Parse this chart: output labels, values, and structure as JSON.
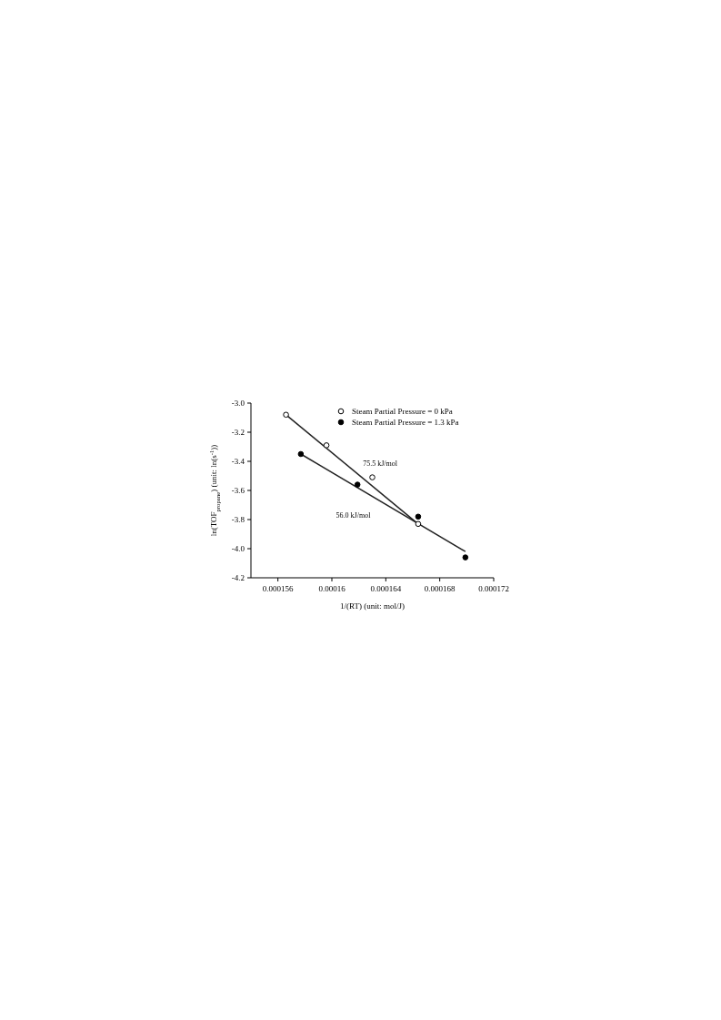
{
  "chart_data": {
    "type": "scatter",
    "xlabel": "1/(RT) (unit: mol/J)",
    "ylabel": "ln(TOF$_{propane}$) (unit: ln(s$^{-1}$))",
    "xlim": [
      0.000154,
      0.000172
    ],
    "xticks": [
      0.000156,
      0.00016,
      0.000164,
      0.000168,
      0.000172
    ],
    "ylim": [
      -4.2,
      -3.0
    ],
    "yticks": [
      {
        "value": -4.2,
        "label": "-4.2"
      },
      {
        "value": -4.0,
        "label": "-4.0"
      },
      {
        "value": -3.8,
        "label": "-3.8"
      },
      {
        "value": -3.6,
        "label": "-3.6"
      },
      {
        "value": -3.4,
        "label": "-3.4"
      },
      {
        "value": -3.2,
        "label": "-3.2"
      },
      {
        "value": -3.0,
        "label": "-3.0"
      }
    ],
    "grid": false,
    "legend": "top right",
    "series": [
      {
        "name": "Steam Partial Pressure = 0 kPa",
        "color": "#000000",
        "marker": "circle",
        "x": [
          0.0001566,
          0.0001596,
          0.000163,
          0.0001664
        ],
        "values": [
          -3.08,
          -3.29,
          -3.51,
          -3.83
        ]
      },
      {
        "name": "Steam Partial Pressure = 1.3 kPa",
        "color": "#000000",
        "marker": "circle",
        "x": [
          0.0001577,
          0.0001619,
          0.0001664,
          0.0001699
        ],
        "values": [
          -3.35,
          -3.56,
          -3.78,
          -4.06
        ]
      },
      {
        "type": "line",
        "color": "#222222",
        "x": [
          0.0001566,
          0.0001664
        ],
        "values": [
          -3.08,
          -3.83
        ]
      },
      {
        "type": "line",
        "color": "#222222",
        "x": [
          0.0001577,
          0.0001699
        ],
        "values": [
          -3.35,
          -4.02
        ]
      }
    ],
    "annotations": [
      "75.5 kJ/mol",
      "56.0 kJ/mol"
    ]
  }
}
